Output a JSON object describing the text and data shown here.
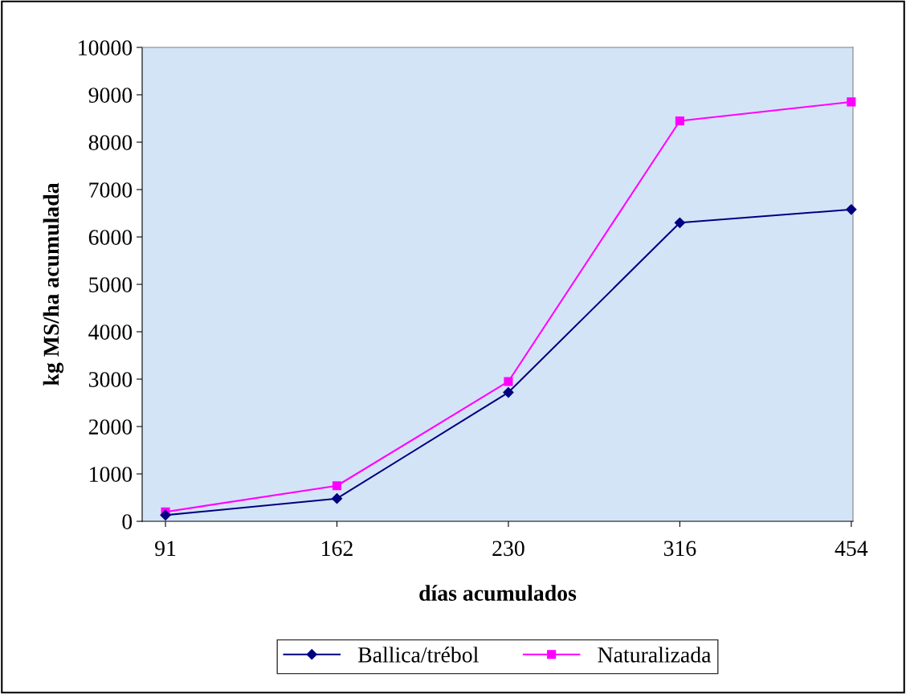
{
  "chart_data": {
    "type": "line",
    "xlabel": "días acumulados",
    "ylabel": "kg MS/ha acumulada",
    "categories": [
      "91",
      "162",
      "230",
      "316",
      "454"
    ],
    "series": [
      {
        "name": "Ballica/trébol",
        "color": "#000080",
        "marker": "diamond",
        "values": [
          130,
          480,
          2720,
          6300,
          6580
        ]
      },
      {
        "name": "Naturalizada",
        "color": "#ff00ff",
        "marker": "square",
        "values": [
          200,
          750,
          2950,
          8450,
          8850
        ]
      }
    ],
    "ylim": [
      0,
      10000
    ],
    "yticks": [
      0,
      1000,
      2000,
      3000,
      4000,
      5000,
      6000,
      7000,
      8000,
      9000,
      10000
    ],
    "grid": false,
    "legend": "bottom",
    "line_style": "solid"
  }
}
